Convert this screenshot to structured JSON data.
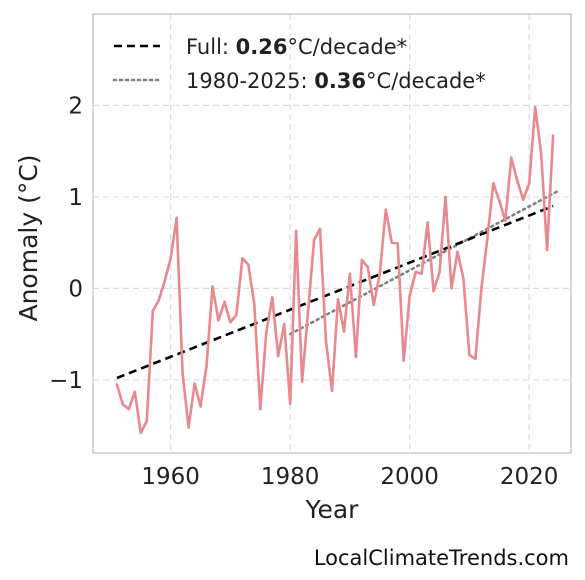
{
  "chart_data": {
    "type": "line",
    "xlabel": "Year",
    "ylabel": "Anomaly (°C)",
    "xlim": [
      1947,
      2027
    ],
    "ylim": [
      -1.8,
      3.0
    ],
    "xticks": [
      1960,
      1980,
      2000,
      2020
    ],
    "yticks": [
      -1,
      0,
      1,
      2
    ],
    "ytick_labels": [
      "−1",
      "0",
      "1",
      "2"
    ],
    "grid": true,
    "legend_position": "top-left",
    "colors": {
      "series": "#e8898d",
      "full_trend": "#000000",
      "recent_trend": "#808080",
      "grid": "#dddddd",
      "frame": "#cccccc"
    },
    "series": [
      {
        "x": [
          1951,
          1952,
          1953,
          1954,
          1955,
          1956,
          1957,
          1958,
          1959,
          1960,
          1961,
          1962,
          1963,
          1964,
          1965,
          1966,
          1967,
          1968,
          1969,
          1970,
          1971,
          1972,
          1973,
          1974,
          1975,
          1976,
          1977,
          1978,
          1979,
          1980,
          1981,
          1982,
          1983,
          1984,
          1985,
          1986,
          1987,
          1988,
          1989,
          1990,
          1991,
          1992,
          1993,
          1994,
          1995,
          1996,
          1997,
          1998,
          1999,
          2000,
          2001,
          2002,
          2003,
          2004,
          2005,
          2006,
          2007,
          2008,
          2009,
          2010,
          2011,
          2012,
          2013,
          2014,
          2015,
          2016,
          2017,
          2018,
          2019,
          2020,
          2021,
          2022,
          2023,
          2024
        ],
        "values": [
          -1.05,
          -1.27,
          -1.32,
          -1.13,
          -1.58,
          -1.45,
          -0.25,
          -0.13,
          0.08,
          0.33,
          0.77,
          -0.93,
          -1.52,
          -1.04,
          -1.29,
          -0.85,
          0.02,
          -0.35,
          -0.15,
          -0.37,
          -0.29,
          0.33,
          0.26,
          -0.17,
          -1.32,
          -0.48,
          -0.1,
          -0.74,
          -0.39,
          -1.26,
          0.63,
          -1.02,
          -0.25,
          0.53,
          0.65,
          -0.58,
          -1.12,
          -0.12,
          -0.47,
          0.16,
          -0.75,
          0.31,
          0.23,
          -0.18,
          0.16,
          0.86,
          0.5,
          0.49,
          -0.79,
          -0.08,
          0.18,
          0.16,
          0.72,
          -0.03,
          0.18,
          1.0,
          0.0,
          0.4,
          0.11,
          -0.73,
          -0.77,
          0.0,
          0.54,
          1.15,
          0.96,
          0.74,
          1.43,
          1.18,
          0.97,
          1.15,
          1.98,
          1.48,
          0.42,
          1.67
        ]
      }
    ],
    "trend_full": {
      "x": [
        1951,
        2024
      ],
      "y": [
        -0.98,
        0.9
      ]
    },
    "trend_recent": {
      "x": [
        1980,
        2025
      ],
      "y": [
        -0.5,
        1.07
      ]
    },
    "legend": [
      {
        "style": "dashed",
        "prefix": "Full: ",
        "value": "0.26",
        "suffix": "°C/decade*"
      },
      {
        "style": "dotted",
        "prefix": "1980-2025: ",
        "value": "0.36",
        "suffix": "°C/decade*"
      }
    ]
  },
  "credit": "LocalClimateTrends.com"
}
